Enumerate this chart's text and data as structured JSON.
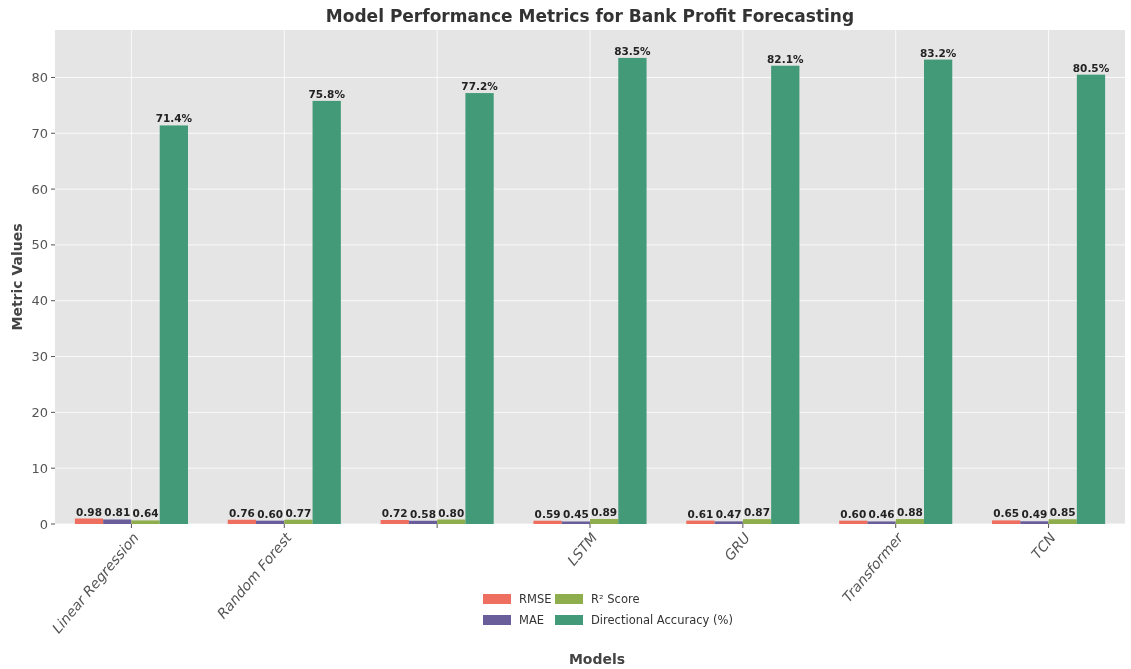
{
  "chart_data": {
    "type": "bar",
    "title": "Model Performance Metrics for Bank Profit Forecasting",
    "xlabel": "Models",
    "ylabel": "Metric Values",
    "categories": [
      "Linear Regression",
      "Random Forest",
      null,
      "LSTM",
      "GRU",
      "Transformer",
      "TCN"
    ],
    "series": [
      {
        "name": "RMSE",
        "color": "#ee6f5f",
        "values": [
          0.98,
          0.76,
          0.72,
          0.59,
          0.61,
          0.6,
          0.65
        ],
        "value_labels": [
          "0.98",
          "0.76",
          "0.72",
          "0.59",
          "0.61",
          "0.60",
          "0.65"
        ]
      },
      {
        "name": "MAE",
        "color": "#6a5e9a",
        "values": [
          0.81,
          0.6,
          0.58,
          0.45,
          0.47,
          0.46,
          0.49
        ],
        "value_labels": [
          "0.81",
          "0.60",
          "0.58",
          "0.45",
          "0.47",
          "0.46",
          "0.49"
        ]
      },
      {
        "name": "R² Score",
        "color": "#8ead4c",
        "values": [
          0.64,
          0.77,
          0.8,
          0.89,
          0.87,
          0.88,
          0.85
        ],
        "value_labels": [
          "0.64",
          "0.77",
          "0.80",
          "0.89",
          "0.87",
          "0.88",
          "0.85"
        ]
      },
      {
        "name": "Directional Accuracy (%)",
        "color": "#429a78",
        "values": [
          71.4,
          75.8,
          77.2,
          83.5,
          82.1,
          83.2,
          80.5
        ],
        "value_labels": [
          "71.4%",
          "75.8%",
          "77.2%",
          "83.5%",
          "82.1%",
          "83.2%",
          "80.5%"
        ]
      }
    ],
    "ylim": [
      0,
      88.5
    ],
    "yticks": [
      0,
      10,
      20,
      30,
      40,
      50,
      60,
      70,
      80
    ],
    "grid": true,
    "legend": "bottom"
  }
}
